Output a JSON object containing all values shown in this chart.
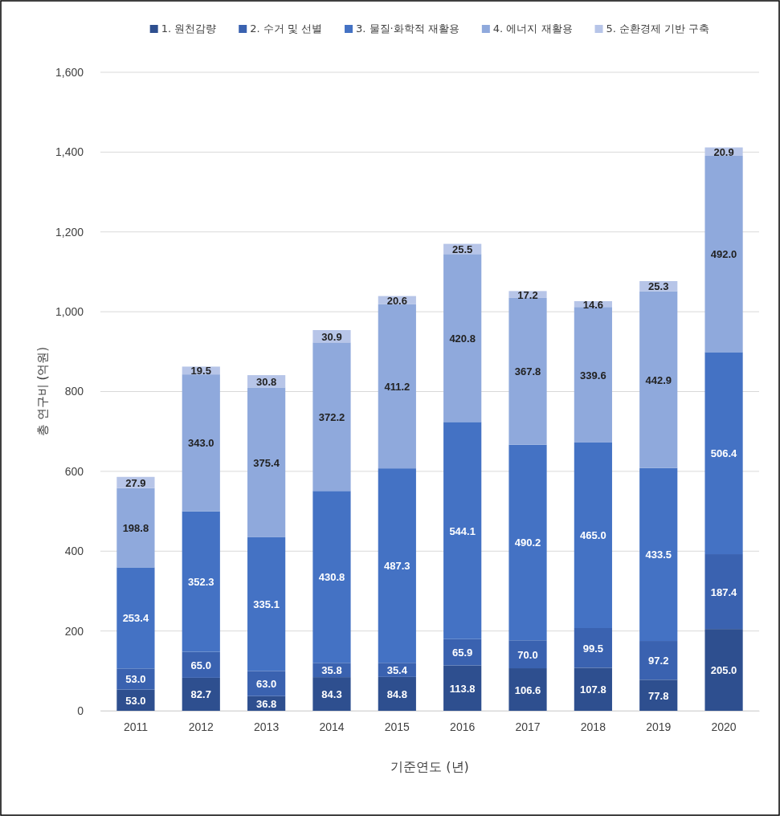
{
  "chart_data": {
    "type": "bar",
    "stacked": true,
    "xlabel": "기준연도 (년)",
    "ylabel": "총 연구비 (억원)",
    "categories": [
      "2011",
      "2012",
      "2013",
      "2014",
      "2015",
      "2016",
      "2017",
      "2018",
      "2019",
      "2020"
    ],
    "series": [
      {
        "name": "1. 원천감량",
        "color": "#2e4f8f",
        "values": [
          53.0,
          82.7,
          36.8,
          84.3,
          84.8,
          113.8,
          106.6,
          107.8,
          77.8,
          205.0
        ],
        "value_labels": [
          "53.0",
          "82.7",
          "36.8",
          "84.3",
          "84.8",
          "113.8",
          "106.6",
          "107.8",
          "77.8",
          "205.0"
        ]
      },
      {
        "name": "2. 수거 및 선별",
        "color": "#3a62b0",
        "values": [
          53.0,
          65.0,
          63.0,
          35.8,
          35.4,
          65.9,
          70.0,
          99.5,
          97.2,
          187.4
        ],
        "value_labels": [
          "53.0",
          "65.0",
          "63.0",
          "35.8",
          "35.4",
          "65.9",
          "70.0",
          "99.5",
          "97.2",
          "187.4"
        ]
      },
      {
        "name": "3. 물질·화학적 재활용",
        "color": "#4472c4",
        "values": [
          253.4,
          352.3,
          335.1,
          430.8,
          487.3,
          544.1,
          490.2,
          465.0,
          433.5,
          506.4
        ],
        "value_labels": [
          "253.4",
          "352.3",
          "335.1",
          "430.8",
          "487.3",
          "544.1",
          "490.2",
          "465.0",
          "433.5",
          "506.4"
        ]
      },
      {
        "name": "4. 에너지 재활용",
        "color": "#8fa9dc",
        "values": [
          198.8,
          343.0,
          375.4,
          372.2,
          411.2,
          420.8,
          367.8,
          339.6,
          442.9,
          492.0
        ],
        "value_labels": [
          "198.8",
          "343.0",
          "375.4",
          "372.2",
          "411.2",
          "420.8",
          "367.8",
          "339.6",
          "442.9",
          "492.0"
        ]
      },
      {
        "name": "5. 순환경제 기반 구축",
        "color": "#b7c5e8",
        "values": [
          27.9,
          19.5,
          30.8,
          30.9,
          20.6,
          25.5,
          17.2,
          14.6,
          25.3,
          20.9
        ],
        "value_labels": [
          "27.9",
          "19.5",
          "30.8",
          "30.9",
          "20.6",
          "25.5",
          "17.2",
          "14.6",
          "25.3",
          "20.9"
        ]
      }
    ],
    "ylim": [
      0,
      1600
    ],
    "yticks": [
      {
        "value": 0,
        "label": "0"
      },
      {
        "value": 200,
        "label": "200"
      },
      {
        "value": 400,
        "label": "400"
      },
      {
        "value": 600,
        "label": "600"
      },
      {
        "value": 800,
        "label": "800"
      },
      {
        "value": 1000,
        "label": "1,000"
      },
      {
        "value": 1200,
        "label": "1,200"
      },
      {
        "value": 1400,
        "label": "1,400"
      },
      {
        "value": 1600,
        "label": "1,600"
      }
    ],
    "grid": "y",
    "legend": "top"
  }
}
